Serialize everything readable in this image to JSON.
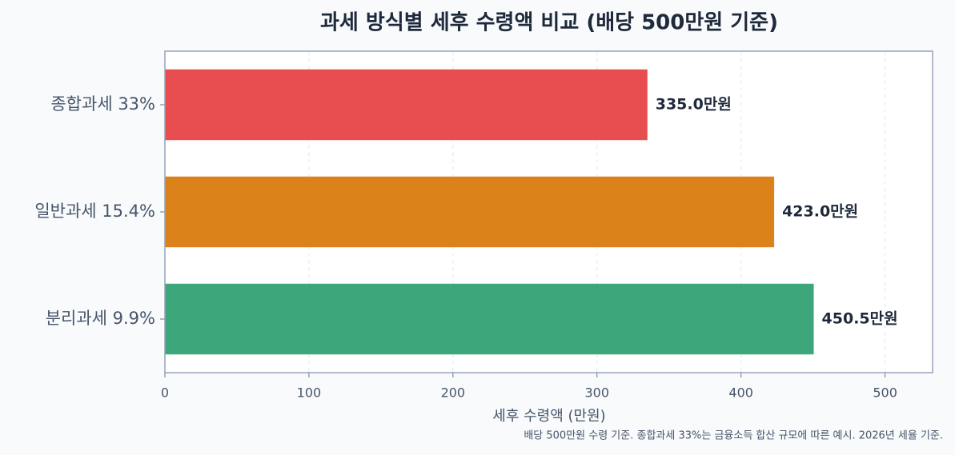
{
  "chart_data": {
    "type": "barh",
    "title": "과세 방식별 세후 수령액 비교 (배당 500만원 기준)",
    "xlabel": "세후 수령액 (만원)",
    "note": "배당 500만원 수령 기준. 종합과세 33%는 금융소득 합산 규모에 따른 예시. 2026년 세율 기준.",
    "categories": [
      "종합과세 33%",
      "일반과세 15.4%",
      "분리과세 9.9%"
    ],
    "values": [
      335,
      423,
      450.5
    ],
    "value_labels": [
      "335.0만원",
      "423.0만원",
      "450.5만원"
    ],
    "colors": [
      "#e84d50",
      "#db821a",
      "#3da77b"
    ],
    "xlim": [
      0,
      533
    ],
    "xticks": [
      0,
      100,
      200,
      300,
      400,
      500
    ],
    "grid": true
  }
}
